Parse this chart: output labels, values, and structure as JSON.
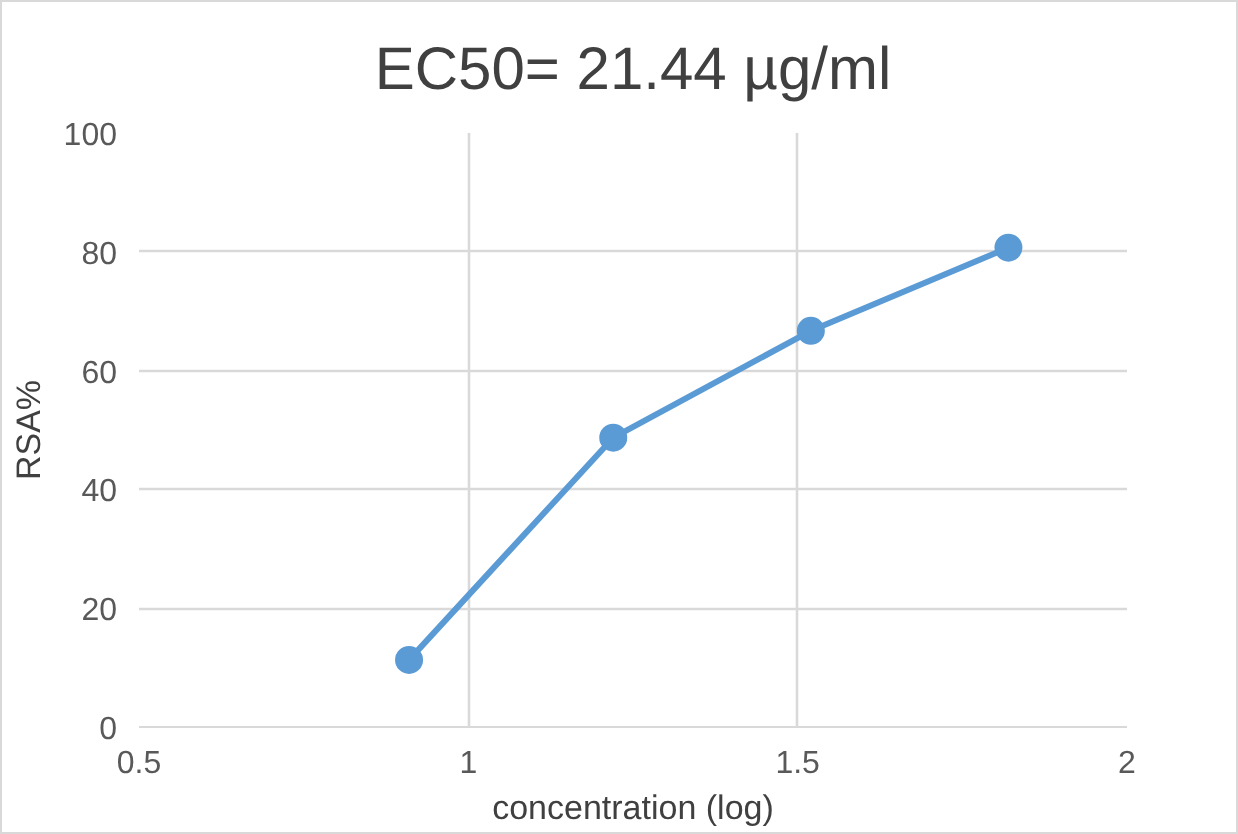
{
  "chart_data": {
    "type": "line",
    "title": "EC50= 21.44 µg/ml",
    "xlabel": "concentration (log)",
    "ylabel": "RSA%",
    "x": [
      0.91,
      1.22,
      1.52,
      1.82
    ],
    "series": [
      {
        "color": "#5b9bd5",
        "values": [
          11.3,
          48.7,
          66.7,
          80.7
        ]
      }
    ],
    "xlim": [
      0.5,
      2
    ],
    "xticks": [
      0.5,
      1,
      1.5,
      2
    ],
    "ylim": [
      0,
      100
    ],
    "yticks": [
      0,
      20,
      40,
      60,
      80,
      100
    ],
    "grid": true,
    "marker": "circle",
    "line_style": "solid"
  }
}
